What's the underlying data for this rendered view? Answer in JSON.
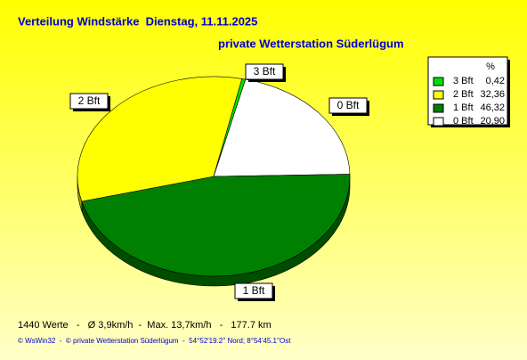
{
  "chart_data": {
    "type": "pie",
    "title": "Verteilung Windstärke  Dienstag, 11.11.2025",
    "subtitle": "private Wetterstation Süderlügum",
    "categories": [
      "3 Bft",
      "2 Bft",
      "1 Bft",
      "0 Bft"
    ],
    "values": [
      0.42,
      32.36,
      46.32,
      20.9
    ],
    "value_labels": [
      "0,42",
      "32,36",
      "46,32",
      "20,90"
    ],
    "colors": [
      "#00e000",
      "#ffff00",
      "#008000",
      "#ffffff"
    ],
    "legend_header": "%",
    "legend": "upper right"
  },
  "footer": {
    "stats": "1440 Werte   -   Ø 3,9km/h  -  Max. 13,7km/h   -   177.7 km",
    "credit": "© WsWin32  -  © private Wetterstation Süderlügum  -  54°52'19.2'' Nord; 8°54'45.1''Ost"
  }
}
